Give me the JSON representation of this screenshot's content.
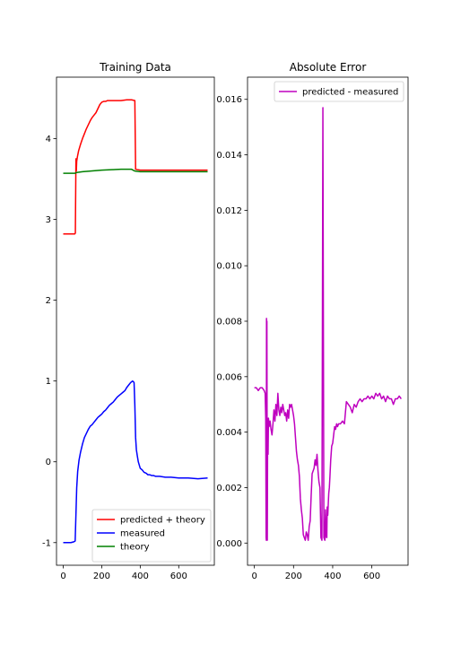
{
  "chart_data": [
    {
      "type": "line",
      "title": "Training Data",
      "xlabel": "",
      "ylabel": "",
      "xlim": [
        -35,
        785
      ],
      "ylim": [
        -1.28,
        4.76
      ],
      "xticks": [
        0,
        200,
        400,
        600
      ],
      "yticks": [
        -1,
        0,
        1,
        2,
        3,
        4
      ],
      "grid": false,
      "legend_position": "lower-right",
      "series": [
        {
          "name": "predicted + theory",
          "color": "#ff0000",
          "x": [
            0,
            60,
            63,
            66,
            68,
            70,
            74,
            80,
            90,
            100,
            110,
            120,
            130,
            140,
            150,
            160,
            170,
            180,
            190,
            200,
            210,
            220,
            230,
            250,
            270,
            300,
            330,
            355,
            372,
            376,
            400,
            500,
            600,
            750
          ],
          "y": [
            2.82,
            2.82,
            2.83,
            3.75,
            3.6,
            3.72,
            3.78,
            3.85,
            3.93,
            4.0,
            4.06,
            4.12,
            4.17,
            4.22,
            4.26,
            4.29,
            4.32,
            4.37,
            4.42,
            4.45,
            4.46,
            4.46,
            4.47,
            4.47,
            4.47,
            4.47,
            4.48,
            4.48,
            4.47,
            3.62,
            3.61,
            3.61,
            3.61,
            3.61
          ]
        },
        {
          "name": "measured",
          "color": "#0000ff",
          "x": [
            0,
            20,
            40,
            55,
            62,
            66,
            70,
            75,
            82,
            90,
            100,
            110,
            120,
            130,
            140,
            150,
            160,
            170,
            180,
            190,
            200,
            210,
            220,
            230,
            240,
            250,
            260,
            270,
            280,
            290,
            300,
            310,
            320,
            330,
            340,
            350,
            355,
            360,
            365,
            368,
            372,
            376,
            380,
            385,
            390,
            395,
            400,
            410,
            420,
            430,
            440,
            450,
            460,
            470,
            480,
            500,
            530,
            560,
            600,
            650,
            700,
            750
          ],
          "y": [
            -1.0,
            -1.0,
            -1.0,
            -0.99,
            -0.98,
            -0.65,
            -0.32,
            -0.12,
            0.02,
            0.12,
            0.22,
            0.3,
            0.35,
            0.4,
            0.44,
            0.46,
            0.49,
            0.52,
            0.55,
            0.57,
            0.59,
            0.62,
            0.64,
            0.67,
            0.7,
            0.72,
            0.74,
            0.77,
            0.8,
            0.82,
            0.84,
            0.86,
            0.88,
            0.92,
            0.95,
            0.98,
            0.99,
            1.0,
            0.99,
            0.98,
            0.7,
            0.3,
            0.15,
            0.07,
            0.0,
            -0.04,
            -0.08,
            -0.1,
            -0.13,
            -0.14,
            -0.16,
            -0.16,
            -0.17,
            -0.17,
            -0.18,
            -0.18,
            -0.19,
            -0.19,
            -0.2,
            -0.2,
            -0.21,
            -0.2
          ]
        },
        {
          "name": "theory",
          "color": "#008000",
          "x": [
            0,
            60,
            70,
            100,
            150,
            200,
            250,
            300,
            355,
            370,
            380,
            400,
            500,
            600,
            750
          ],
          "y": [
            3.57,
            3.57,
            3.58,
            3.59,
            3.6,
            3.61,
            3.615,
            3.62,
            3.62,
            3.6,
            3.595,
            3.59,
            3.59,
            3.59,
            3.59
          ]
        }
      ]
    },
    {
      "type": "line",
      "title": "Absolute Error",
      "xlabel": "",
      "ylabel": "",
      "xlim": [
        -35,
        785
      ],
      "ylim": [
        -0.0008,
        0.0168
      ],
      "xticks": [
        0,
        200,
        400,
        600
      ],
      "yticks": [
        0.0,
        0.002,
        0.004,
        0.006,
        0.008,
        0.01,
        0.012,
        0.014,
        0.016
      ],
      "ytick_labels": [
        "0.000",
        "0.002",
        "0.004",
        "0.006",
        "0.008",
        "0.010",
        "0.012",
        "0.014",
        "0.016"
      ],
      "grid": false,
      "legend_position": "top-right",
      "series": [
        {
          "name": "predicted - measured",
          "color": "#bf00bf",
          "x": [
            0,
            10,
            20,
            30,
            40,
            50,
            55,
            58,
            60,
            61,
            62,
            63,
            64,
            66,
            68,
            70,
            72,
            75,
            80,
            85,
            90,
            95,
            100,
            105,
            110,
            115,
            120,
            125,
            130,
            135,
            140,
            145,
            150,
            155,
            160,
            165,
            170,
            175,
            180,
            185,
            190,
            195,
            200,
            205,
            210,
            215,
            220,
            225,
            230,
            235,
            240,
            245,
            250,
            255,
            260,
            265,
            270,
            275,
            280,
            285,
            290,
            295,
            300,
            305,
            310,
            315,
            320,
            325,
            330,
            335,
            340,
            345,
            350,
            355,
            360,
            363,
            366,
            368,
            370,
            372,
            375,
            378,
            380,
            383,
            386,
            390,
            395,
            400,
            405,
            410,
            415,
            420,
            425,
            430,
            440,
            450,
            460,
            470,
            480,
            490,
            500,
            510,
            520,
            530,
            540,
            550,
            560,
            570,
            580,
            590,
            600,
            610,
            620,
            630,
            640,
            650,
            660,
            670,
            680,
            690,
            700,
            710,
            720,
            730,
            740,
            750
          ],
          "y": [
            0.0056,
            0.0056,
            0.0055,
            0.0056,
            0.0056,
            0.0055,
            0.0054,
            0.0045,
            0.0002,
            0.0001,
            0.0081,
            0.0002,
            0.008,
            0.0001,
            0.0045,
            0.0032,
            0.0045,
            0.0042,
            0.0044,
            0.0041,
            0.0039,
            0.0043,
            0.0048,
            0.0044,
            0.005,
            0.0046,
            0.0054,
            0.0048,
            0.0046,
            0.0049,
            0.0047,
            0.005,
            0.0048,
            0.0046,
            0.0047,
            0.0044,
            0.0048,
            0.0045,
            0.005,
            0.0049,
            0.005,
            0.0048,
            0.0046,
            0.0043,
            0.0038,
            0.0033,
            0.003,
            0.0028,
            0.0024,
            0.0016,
            0.0012,
            0.0009,
            0.0003,
            0.0002,
            0.0001,
            0.0004,
            0.0003,
            0.0001,
            0.0006,
            0.0008,
            0.0017,
            0.0025,
            0.0026,
            0.0027,
            0.003,
            0.0028,
            0.0032,
            0.0026,
            0.0022,
            0.002,
            0.0002,
            0.0001,
            0.0157,
            0.0002,
            0.0001,
            0.0012,
            0.0004,
            0.0002,
            0.0002,
            0.0013,
            0.001,
            0.0015,
            0.0018,
            0.002,
            0.0024,
            0.003,
            0.0035,
            0.0036,
            0.0039,
            0.0042,
            0.0041,
            0.0043,
            0.0042,
            0.0043,
            0.0043,
            0.0044,
            0.0043,
            0.0051,
            0.005,
            0.0049,
            0.0047,
            0.005,
            0.0049,
            0.0051,
            0.0052,
            0.0051,
            0.0052,
            0.0052,
            0.0053,
            0.0052,
            0.0053,
            0.0052,
            0.0054,
            0.0053,
            0.0054,
            0.0052,
            0.0053,
            0.0051,
            0.0053,
            0.0052,
            0.0052,
            0.005,
            0.0052,
            0.0052,
            0.0053,
            0.0052
          ]
        }
      ]
    }
  ]
}
